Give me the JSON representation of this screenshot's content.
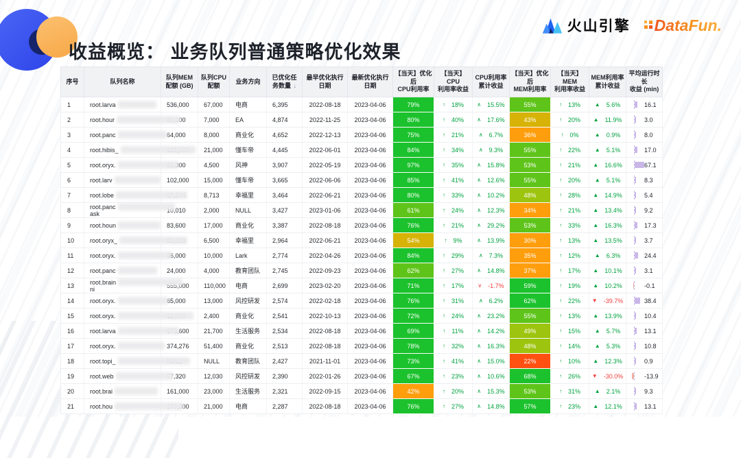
{
  "page": {
    "title": "收益概览： 业务队列普通策略优化效果"
  },
  "brand": {
    "volcano": "火山引擎",
    "datafun": "DataFun."
  },
  "colors": {
    "levels": {
      "g": "#1cc22d",
      "g2": "#5fc41a",
      "g3": "#9dc40e",
      "y": "#d6b306",
      "o": "#ff9e0d",
      "r": "#ff5012"
    },
    "gain_pos": "#00a23f",
    "gain_neg": "#f23c3c",
    "time_bar": "#c9b7e8",
    "time_bar_neg": "#f0b0a6"
  },
  "table": {
    "columns": [
      {
        "key": "no",
        "label": "序号"
      },
      {
        "key": "queue_name",
        "label": "队列名称"
      },
      {
        "key": "mem_quota",
        "label": "队列MEM\n配额 (GB)"
      },
      {
        "key": "cpu_quota",
        "label": "队列CPU\n配额"
      },
      {
        "key": "business",
        "label": "业务方向"
      },
      {
        "key": "task_count",
        "label": "已优化任\n务数量",
        "sort": true,
        "sort_glyph": "↓"
      },
      {
        "key": "first_date",
        "label": "最早优化执行\n日期"
      },
      {
        "key": "last_date",
        "label": "最新优化执行\n日期"
      },
      {
        "key": "cpu_util",
        "label": "【当天】优化后\nCPU利用率"
      },
      {
        "key": "cpu_gain",
        "label": "【当天】CPU\n利用率收益"
      },
      {
        "key": "cpu_cum",
        "label": "CPU利用率\n累计收益"
      },
      {
        "key": "mem_util",
        "label": "【当天】优化后\nMEM利用率"
      },
      {
        "key": "mem_gain",
        "label": "【当天】MEM\n利用率收益"
      },
      {
        "key": "mem_cum",
        "label": "MEM利用率\n累计收益"
      },
      {
        "key": "time_gain",
        "label": "平均运行时长\n收益 (min)"
      }
    ],
    "rows": [
      {
        "no": "1",
        "name": "root.larva",
        "name2": "",
        "mem": "536,000",
        "cpu": "67,000",
        "biz": "电商",
        "tasks": "6,395",
        "first": "2022-08-18",
        "last": "2023-04-06",
        "cpu_util": "79%",
        "cpu_lvl": "g",
        "cpu_gain": "18%",
        "cpu_cum": "15.5%",
        "cpu_cum_neg": false,
        "mem_util": "55%",
        "mem_lvl": "g2",
        "mem_gain": "13%",
        "mem_cum": "5.6%",
        "mem_cum_neg": false,
        "time": "16.1",
        "time_v": 16.1
      },
      {
        "no": "2",
        "name": "root.hour",
        "name2": "",
        "mem": "30,000",
        "cpu": "7,000",
        "biz": "EA",
        "tasks": "4,874",
        "first": "2022-11-25",
        "last": "2023-04-06",
        "cpu_util": "80%",
        "cpu_lvl": "g",
        "cpu_gain": "40%",
        "cpu_cum": "17.6%",
        "cpu_cum_neg": false,
        "mem_util": "43%",
        "mem_lvl": "y",
        "mem_gain": "20%",
        "mem_cum": "11.9%",
        "mem_cum_neg": false,
        "time": "3.0",
        "time_v": 3.0
      },
      {
        "no": "3",
        "name": "root.panc",
        "name2": "",
        "mem": "64,000",
        "cpu": "8,000",
        "biz": "商业化",
        "tasks": "4,652",
        "first": "2022-12-13",
        "last": "2023-04-06",
        "cpu_util": "75%",
        "cpu_lvl": "g",
        "cpu_gain": "21%",
        "cpu_cum": "6.7%",
        "cpu_cum_neg": false,
        "mem_util": "36%",
        "mem_lvl": "o",
        "mem_gain": "0%",
        "mem_cum": "0.9%",
        "mem_cum_neg": false,
        "time": "8.0",
        "time_v": 8.0
      },
      {
        "no": "4",
        "name": "root.hibis_",
        "name2": "",
        "mem": "135,000",
        "cpu": "21,000",
        "biz": "懂车帝",
        "tasks": "4,445",
        "first": "2022-06-01",
        "last": "2023-04-06",
        "cpu_util": "84%",
        "cpu_lvl": "g",
        "cpu_gain": "34%",
        "cpu_cum": "9.3%",
        "cpu_cum_neg": false,
        "mem_util": "55%",
        "mem_lvl": "g2",
        "mem_gain": "22%",
        "mem_cum": "5.1%",
        "mem_cum_neg": false,
        "time": "17.0",
        "time_v": 17.0
      },
      {
        "no": "5",
        "name": "root.oryx.",
        "name2": "",
        "mem": "30,000",
        "cpu": "4,500",
        "biz": "风神",
        "tasks": "3,907",
        "first": "2022-05-19",
        "last": "2023-04-06",
        "cpu_util": "97%",
        "cpu_lvl": "g",
        "cpu_gain": "35%",
        "cpu_cum": "15.8%",
        "cpu_cum_neg": false,
        "mem_util": "53%",
        "mem_lvl": "g2",
        "mem_gain": "21%",
        "mem_cum": "16.6%",
        "mem_cum_neg": false,
        "time": "67.1",
        "time_v": 67.1
      },
      {
        "no": "6",
        "name": "root.larv",
        "name2": "",
        "mem": "102,000",
        "cpu": "15,000",
        "biz": "懂车帝",
        "tasks": "3,665",
        "first": "2022-06-06",
        "last": "2023-04-06",
        "cpu_util": "85%",
        "cpu_lvl": "g",
        "cpu_gain": "41%",
        "cpu_cum": "12.6%",
        "cpu_cum_neg": false,
        "mem_util": "55%",
        "mem_lvl": "g2",
        "mem_gain": "20%",
        "mem_cum": "5.1%",
        "mem_cum_neg": false,
        "time": "8.3",
        "time_v": 8.3
      },
      {
        "no": "7",
        "name": "root.lobe",
        "name2": "",
        "mem": "37,344",
        "cpu": "8,713",
        "biz": "幸福里",
        "tasks": "3,464",
        "first": "2022-06-21",
        "last": "2023-04-06",
        "cpu_util": "80%",
        "cpu_lvl": "g",
        "cpu_gain": "33%",
        "cpu_cum": "10.2%",
        "cpu_cum_neg": false,
        "mem_util": "48%",
        "mem_lvl": "g3",
        "mem_gain": "28%",
        "mem_cum": "14.9%",
        "mem_cum_neg": false,
        "time": "5.4",
        "time_v": 5.4
      },
      {
        "no": "8",
        "name": "root.panc",
        "name2": "ask",
        "mem": "10,010",
        "cpu": "2,000",
        "biz": "NULL",
        "tasks": "3,427",
        "first": "2023-01-06",
        "last": "2023-04-06",
        "cpu_util": "61%",
        "cpu_lvl": "g2",
        "cpu_gain": "24%",
        "cpu_cum": "12.3%",
        "cpu_cum_neg": false,
        "mem_util": "34%",
        "mem_lvl": "o",
        "mem_gain": "21%",
        "mem_cum": "13.4%",
        "mem_cum_neg": false,
        "time": "9.2",
        "time_v": 9.2
      },
      {
        "no": "9",
        "name": "root.houn",
        "name2": "",
        "mem": "83,600",
        "cpu": "17,000",
        "biz": "商业化",
        "tasks": "3,387",
        "first": "2022-08-18",
        "last": "2023-04-06",
        "cpu_util": "76%",
        "cpu_lvl": "g",
        "cpu_gain": "21%",
        "cpu_cum": "29.2%",
        "cpu_cum_neg": false,
        "mem_util": "53%",
        "mem_lvl": "g2",
        "mem_gain": "33%",
        "mem_cum": "16.3%",
        "mem_cum_neg": false,
        "time": "17.3",
        "time_v": 17.3
      },
      {
        "no": "10",
        "name": "root.oryx_",
        "name2": "",
        "mem": "36,000",
        "cpu": "6,500",
        "biz": "幸福里",
        "tasks": "2,964",
        "first": "2022-06-21",
        "last": "2023-04-06",
        "cpu_util": "54%",
        "cpu_lvl": "y",
        "cpu_gain": "9%",
        "cpu_cum": "13.9%",
        "cpu_cum_neg": false,
        "mem_util": "30%",
        "mem_lvl": "o",
        "mem_gain": "13%",
        "mem_cum": "13.5%",
        "mem_cum_neg": false,
        "time": "3.7",
        "time_v": 3.7
      },
      {
        "no": "11",
        "name": "root.oryx.",
        "name2": "",
        "mem": "56,000",
        "cpu": "10,000",
        "biz": "Lark",
        "tasks": "2,774",
        "first": "2022-04-26",
        "last": "2023-04-06",
        "cpu_util": "84%",
        "cpu_lvl": "g",
        "cpu_gain": "29%",
        "cpu_cum": "7.3%",
        "cpu_cum_neg": false,
        "mem_util": "35%",
        "mem_lvl": "o",
        "mem_gain": "12%",
        "mem_cum": "6.3%",
        "mem_cum_neg": false,
        "time": "24.4",
        "time_v": 24.4
      },
      {
        "no": "12",
        "name": "root.panc",
        "name2": "",
        "mem": "24,000",
        "cpu": "4,000",
        "biz": "教育团队",
        "tasks": "2,745",
        "first": "2022-09-23",
        "last": "2023-04-06",
        "cpu_util": "62%",
        "cpu_lvl": "g2",
        "cpu_gain": "27%",
        "cpu_cum": "14.8%",
        "cpu_cum_neg": false,
        "mem_util": "37%",
        "mem_lvl": "o",
        "mem_gain": "17%",
        "mem_cum": "10.1%",
        "mem_cum_neg": false,
        "time": "3.1",
        "time_v": 3.1
      },
      {
        "no": "13",
        "name": "root.brain",
        "name2": "ni",
        "mem": "555,000",
        "cpu": "110,000",
        "biz": "电商",
        "tasks": "2,699",
        "first": "2023-02-20",
        "last": "2023-04-06",
        "cpu_util": "71%",
        "cpu_lvl": "g",
        "cpu_gain": "17%",
        "cpu_cum": "-1.7%",
        "cpu_cum_neg": true,
        "mem_util": "59%",
        "mem_lvl": "g",
        "mem_gain": "19%",
        "mem_cum": "10.2%",
        "mem_cum_neg": false,
        "time": "-0.1",
        "time_v": -0.1
      },
      {
        "no": "14",
        "name": "root.oryx.",
        "name2": "",
        "mem": "65,000",
        "cpu": "13,000",
        "biz": "风控研发",
        "tasks": "2,574",
        "first": "2022-02-18",
        "last": "2023-04-06",
        "cpu_util": "76%",
        "cpu_lvl": "g",
        "cpu_gain": "31%",
        "cpu_cum": "6.2%",
        "cpu_cum_neg": false,
        "mem_util": "62%",
        "mem_lvl": "g",
        "mem_gain": "22%",
        "mem_cum": "-39.7%",
        "mem_cum_neg": true,
        "time": "38.4",
        "time_v": 38.4
      },
      {
        "no": "15",
        "name": "root.oryx.",
        "name2": "",
        "mem": "12,000",
        "cpu": "2,400",
        "biz": "商业化",
        "tasks": "2,541",
        "first": "2022-10-13",
        "last": "2023-04-06",
        "cpu_util": "72%",
        "cpu_lvl": "g",
        "cpu_gain": "24%",
        "cpu_cum": "23.2%",
        "cpu_cum_neg": false,
        "mem_util": "55%",
        "mem_lvl": "g2",
        "mem_gain": "13%",
        "mem_cum": "13.9%",
        "mem_cum_neg": false,
        "time": "10.4",
        "time_v": 10.4
      },
      {
        "no": "16",
        "name": "root.larva",
        "name2": "",
        "mem": "173,600",
        "cpu": "21,700",
        "biz": "生活服务",
        "tasks": "2,534",
        "first": "2022-08-18",
        "last": "2023-04-06",
        "cpu_util": "69%",
        "cpu_lvl": "g",
        "cpu_gain": "11%",
        "cpu_cum": "14.2%",
        "cpu_cum_neg": false,
        "mem_util": "49%",
        "mem_lvl": "g3",
        "mem_gain": "15%",
        "mem_cum": "5.7%",
        "mem_cum_neg": false,
        "time": "13.1",
        "time_v": 13.1
      },
      {
        "no": "17",
        "name": "root.oryx.",
        "name2": "",
        "mem": "374,276",
        "cpu": "51,400",
        "biz": "商业化",
        "tasks": "2,513",
        "first": "2022-08-18",
        "last": "2023-04-06",
        "cpu_util": "78%",
        "cpu_lvl": "g",
        "cpu_gain": "32%",
        "cpu_cum": "16.3%",
        "cpu_cum_neg": false,
        "mem_util": "48%",
        "mem_lvl": "g3",
        "mem_gain": "14%",
        "mem_cum": "5.3%",
        "mem_cum_neg": false,
        "time": "10.8",
        "time_v": 10.8
      },
      {
        "no": "18",
        "name": "root.topi_",
        "name2": "",
        "mem": "NULL",
        "cpu": "NULL",
        "biz": "教育团队",
        "tasks": "2,427",
        "first": "2021-11-01",
        "last": "2023-04-06",
        "cpu_util": "73%",
        "cpu_lvl": "g",
        "cpu_gain": "41%",
        "cpu_cum": "15.0%",
        "cpu_cum_neg": false,
        "mem_util": "22%",
        "mem_lvl": "r",
        "mem_gain": "10%",
        "mem_cum": "12.3%",
        "mem_cum_neg": false,
        "time": "0.9",
        "time_v": 0.9
      },
      {
        "no": "19",
        "name": "root.web",
        "name2": "",
        "mem": "77,320",
        "cpu": "12,030",
        "biz": "风控研发",
        "tasks": "2,390",
        "first": "2022-01-26",
        "last": "2023-04-06",
        "cpu_util": "67%",
        "cpu_lvl": "g",
        "cpu_gain": "23%",
        "cpu_cum": "10.6%",
        "cpu_cum_neg": false,
        "mem_util": "68%",
        "mem_lvl": "g",
        "mem_gain": "26%",
        "mem_cum": "-30.0%",
        "mem_cum_neg": true,
        "time": "-13.9",
        "time_v": -13.9
      },
      {
        "no": "20",
        "name": "root.brai",
        "name2": "",
        "mem": "161,000",
        "cpu": "23,000",
        "biz": "生活服务",
        "tasks": "2,321",
        "first": "2022-09-15",
        "last": "2023-04-06",
        "cpu_util": "42%",
        "cpu_lvl": "o",
        "cpu_gain": "20%",
        "cpu_cum": "15.3%",
        "cpu_cum_neg": false,
        "mem_util": "53%",
        "mem_lvl": "g2",
        "mem_gain": "31%",
        "mem_cum": "2.1%",
        "mem_cum_neg": false,
        "time": "9.3",
        "time_v": 9.3
      },
      {
        "no": "21",
        "name": "root.hou",
        "name2": "",
        "mem": "170,000",
        "cpu": "21,000",
        "biz": "电商",
        "tasks": "2,287",
        "first": "2022-08-18",
        "last": "2023-04-06",
        "cpu_util": "76%",
        "cpu_lvl": "g",
        "cpu_gain": "27%",
        "cpu_cum": "14.8%",
        "cpu_cum_neg": false,
        "mem_util": "57%",
        "mem_lvl": "g",
        "mem_gain": "23%",
        "mem_cum": "12.1%",
        "mem_cum_neg": false,
        "time": "13.1",
        "time_v": 13.1
      }
    ]
  }
}
